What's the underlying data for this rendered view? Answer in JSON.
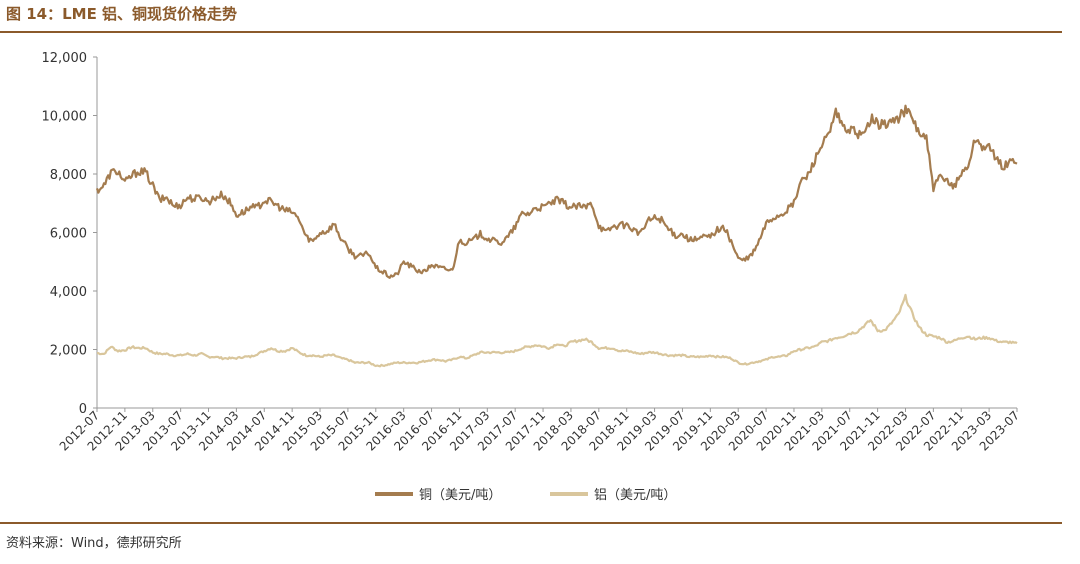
{
  "figure": {
    "title": "图 14：LME 铝、铜现货价格走势",
    "source": "资料来源：Wind，德邦研究所"
  },
  "colors": {
    "accent": "#8b5a2b",
    "copper": "#a47c4f",
    "aluminum": "#d9c69c"
  },
  "chart_data": {
    "type": "line",
    "title": "",
    "xlabel": "",
    "ylabel": "",
    "ylim": [
      0,
      12000
    ],
    "yticks": [
      "0",
      "2,000",
      "4,000",
      "6,000",
      "8,000",
      "10,000",
      "12,000"
    ],
    "xticks": [
      "2012-07",
      "2012-11",
      "2013-03",
      "2013-07",
      "2013-11",
      "2014-03",
      "2014-07",
      "2014-11",
      "2015-03",
      "2015-07",
      "2015-11",
      "2016-03",
      "2016-07",
      "2016-11",
      "2017-03",
      "2017-07",
      "2017-11",
      "2018-03",
      "2018-07",
      "2018-11",
      "2019-03",
      "2019-07",
      "2019-11",
      "2020-03",
      "2020-07",
      "2020-11",
      "2021-03",
      "2021-07",
      "2021-11",
      "2022-03",
      "2022-07",
      "2022-11",
      "2023-03",
      "2023-07"
    ],
    "legend_position": "bottom-center",
    "grid": false,
    "series": [
      {
        "name": "铜（美元/吨）",
        "color": "#a47c4f",
        "x": [
          "2012-07",
          "2012-08",
          "2012-09",
          "2012-10",
          "2012-11",
          "2012-12",
          "2013-01",
          "2013-02",
          "2013-03",
          "2013-04",
          "2013-05",
          "2013-06",
          "2013-07",
          "2013-08",
          "2013-09",
          "2013-10",
          "2013-11",
          "2013-12",
          "2014-01",
          "2014-02",
          "2014-03",
          "2014-04",
          "2014-05",
          "2014-06",
          "2014-07",
          "2014-08",
          "2014-09",
          "2014-10",
          "2014-11",
          "2014-12",
          "2015-01",
          "2015-02",
          "2015-03",
          "2015-04",
          "2015-05",
          "2015-06",
          "2015-07",
          "2015-08",
          "2015-09",
          "2015-10",
          "2015-11",
          "2015-12",
          "2016-01",
          "2016-02",
          "2016-03",
          "2016-04",
          "2016-05",
          "2016-06",
          "2016-07",
          "2016-08",
          "2016-09",
          "2016-10",
          "2016-11",
          "2016-12",
          "2017-01",
          "2017-02",
          "2017-03",
          "2017-04",
          "2017-05",
          "2017-06",
          "2017-07",
          "2017-08",
          "2017-09",
          "2017-10",
          "2017-11",
          "2017-12",
          "2018-01",
          "2018-02",
          "2018-03",
          "2018-04",
          "2018-05",
          "2018-06",
          "2018-07",
          "2018-08",
          "2018-09",
          "2018-10",
          "2018-11",
          "2018-12",
          "2019-01",
          "2019-02",
          "2019-03",
          "2019-04",
          "2019-05",
          "2019-06",
          "2019-07",
          "2019-08",
          "2019-09",
          "2019-10",
          "2019-11",
          "2019-12",
          "2020-01",
          "2020-02",
          "2020-03",
          "2020-04",
          "2020-05",
          "2020-06",
          "2020-07",
          "2020-08",
          "2020-09",
          "2020-10",
          "2020-11",
          "2020-12",
          "2021-01",
          "2021-02",
          "2021-03",
          "2021-04",
          "2021-05",
          "2021-06",
          "2021-07",
          "2021-08",
          "2021-09",
          "2021-10",
          "2021-11",
          "2021-12",
          "2022-01",
          "2022-02",
          "2022-03",
          "2022-04",
          "2022-05",
          "2022-06",
          "2022-07",
          "2022-08",
          "2022-09",
          "2022-10",
          "2022-11",
          "2022-12",
          "2023-01",
          "2023-02",
          "2023-03",
          "2023-04",
          "2023-05",
          "2023-06",
          "2023-07"
        ],
        "values": [
          7450,
          7600,
          8050,
          8100,
          7700,
          7950,
          8100,
          8050,
          7600,
          7100,
          7200,
          6900,
          6950,
          7200,
          7150,
          7200,
          7050,
          7200,
          7300,
          7050,
          6600,
          6700,
          6850,
          6850,
          7100,
          7050,
          6900,
          6750,
          6700,
          6450,
          5850,
          5700,
          6000,
          6050,
          6300,
          5800,
          5450,
          5200,
          5200,
          5300,
          4800,
          4650,
          4500,
          4550,
          5000,
          4850,
          4700,
          4650,
          4900,
          4800,
          4750,
          4700,
          5750,
          5650,
          5750,
          5950,
          5800,
          5700,
          5650,
          5850,
          6200,
          6650,
          6650,
          6850,
          6850,
          7000,
          7100,
          7000,
          6850,
          6900,
          6850,
          7000,
          6250,
          6000,
          6200,
          6250,
          6250,
          6100,
          5950,
          6400,
          6500,
          6450,
          6100,
          5900,
          5950,
          5750,
          5750,
          5850,
          5850,
          6100,
          6150,
          5700,
          5100,
          5050,
          5250,
          5700,
          6300,
          6500,
          6600,
          6750,
          7000,
          7750,
          7950,
          8500,
          9000,
          9300,
          10100,
          9600,
          9500,
          9400,
          9300,
          9900,
          9700,
          9700,
          9800,
          9900,
          10200,
          9900,
          9400,
          9200,
          7500,
          7900,
          7700,
          7600,
          8000,
          8300,
          9200,
          8950,
          8900,
          8500,
          8250,
          8400,
          8500
        ]
      },
      {
        "name": "铝（美元/吨）",
        "color": "#d9c69c",
        "x": [
          "2012-07",
          "2012-08",
          "2012-09",
          "2012-10",
          "2012-11",
          "2012-12",
          "2013-01",
          "2013-02",
          "2013-03",
          "2013-04",
          "2013-05",
          "2013-06",
          "2013-07",
          "2013-08",
          "2013-09",
          "2013-10",
          "2013-11",
          "2013-12",
          "2014-01",
          "2014-02",
          "2014-03",
          "2014-04",
          "2014-05",
          "2014-06",
          "2014-07",
          "2014-08",
          "2014-09",
          "2014-10",
          "2014-11",
          "2014-12",
          "2015-01",
          "2015-02",
          "2015-03",
          "2015-04",
          "2015-05",
          "2015-06",
          "2015-07",
          "2015-08",
          "2015-09",
          "2015-10",
          "2015-11",
          "2015-12",
          "2016-01",
          "2016-02",
          "2016-03",
          "2016-04",
          "2016-05",
          "2016-06",
          "2016-07",
          "2016-08",
          "2016-09",
          "2016-10",
          "2016-11",
          "2016-12",
          "2017-01",
          "2017-02",
          "2017-03",
          "2017-04",
          "2017-05",
          "2017-06",
          "2017-07",
          "2017-08",
          "2017-09",
          "2017-10",
          "2017-11",
          "2017-12",
          "2018-01",
          "2018-02",
          "2018-03",
          "2018-04",
          "2018-05",
          "2018-06",
          "2018-07",
          "2018-08",
          "2018-09",
          "2018-10",
          "2018-11",
          "2018-12",
          "2019-01",
          "2019-02",
          "2019-03",
          "2019-04",
          "2019-05",
          "2019-06",
          "2019-07",
          "2019-08",
          "2019-09",
          "2019-10",
          "2019-11",
          "2019-12",
          "2020-01",
          "2020-02",
          "2020-03",
          "2020-04",
          "2020-05",
          "2020-06",
          "2020-07",
          "2020-08",
          "2020-09",
          "2020-10",
          "2020-11",
          "2020-12",
          "2021-01",
          "2021-02",
          "2021-03",
          "2021-04",
          "2021-05",
          "2021-06",
          "2021-07",
          "2021-08",
          "2021-09",
          "2021-10",
          "2021-11",
          "2021-12",
          "2022-01",
          "2022-02",
          "2022-03",
          "2022-04",
          "2022-05",
          "2022-06",
          "2022-07",
          "2022-08",
          "2022-09",
          "2022-10",
          "2022-11",
          "2022-12",
          "2023-01",
          "2023-02",
          "2023-03",
          "2023-04",
          "2023-05",
          "2023-06",
          "2023-07"
        ],
        "values": [
          1880,
          1850,
          2100,
          1950,
          1980,
          2080,
          2050,
          2050,
          1900,
          1850,
          1850,
          1800,
          1800,
          1850,
          1800,
          1850,
          1750,
          1750,
          1700,
          1700,
          1700,
          1750,
          1750,
          1850,
          1950,
          2050,
          1950,
          1950,
          2050,
          1900,
          1800,
          1800,
          1750,
          1800,
          1800,
          1700,
          1650,
          1550,
          1550,
          1550,
          1450,
          1450,
          1500,
          1550,
          1550,
          1550,
          1550,
          1600,
          1650,
          1650,
          1600,
          1650,
          1750,
          1700,
          1800,
          1900,
          1900,
          1900,
          1900,
          1900,
          1950,
          2050,
          2100,
          2150,
          2100,
          2050,
          2200,
          2100,
          2250,
          2300,
          2350,
          2250,
          2050,
          2050,
          2050,
          1950,
          1950,
          1900,
          1850,
          1900,
          1900,
          1850,
          1800,
          1800,
          1800,
          1750,
          1750,
          1750,
          1800,
          1750,
          1750,
          1700,
          1550,
          1500,
          1550,
          1600,
          1650,
          1750,
          1750,
          1800,
          1950,
          2000,
          2050,
          2100,
          2250,
          2300,
          2400,
          2450,
          2550,
          2600,
          2800,
          3000,
          2650,
          2650,
          2900,
          3200,
          3800,
          3200,
          2750,
          2500,
          2450,
          2400,
          2250,
          2300,
          2400,
          2450,
          2350,
          2400,
          2400,
          2300,
          2250,
          2250,
          2200
        ]
      }
    ]
  }
}
